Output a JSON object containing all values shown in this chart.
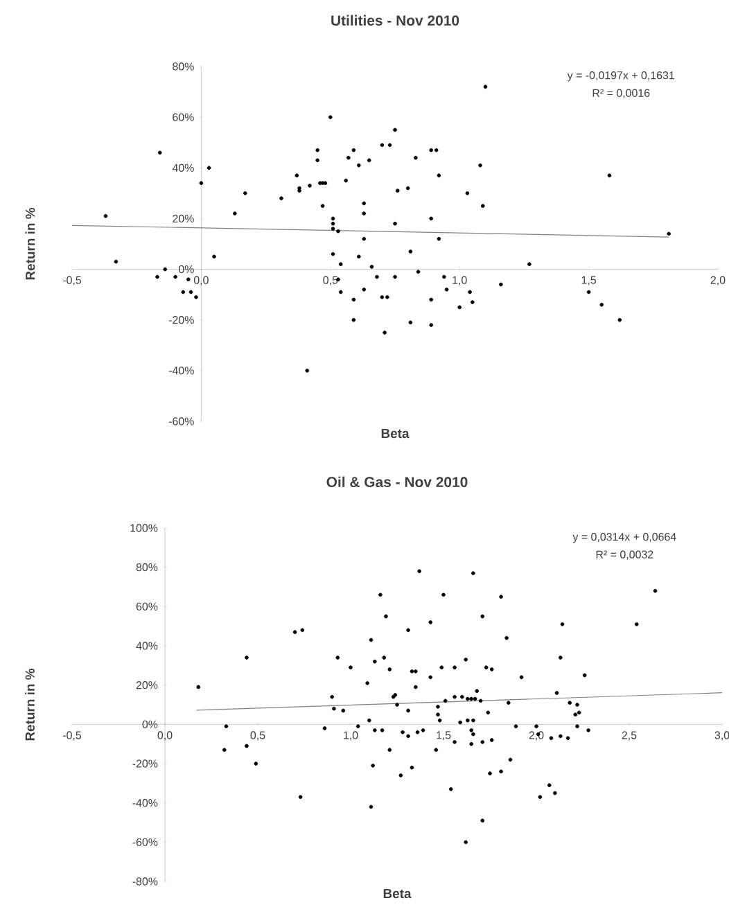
{
  "chart_data": [
    {
      "type": "scatter",
      "title": "Utilities - Nov 2010",
      "xlabel": "Beta",
      "ylabel": "Return in %",
      "xlim": [
        -0.5,
        2.0
      ],
      "ylim": [
        -60,
        80
      ],
      "xticks": [
        {
          "value": -0.5,
          "label": "-0,5"
        },
        {
          "value": 0,
          "label": "0,0"
        },
        {
          "value": 0.5,
          "label": "0,5"
        },
        {
          "value": 1.0,
          "label": "1,0"
        },
        {
          "value": 1.5,
          "label": "1,5"
        },
        {
          "value": 2.0,
          "label": "2,0"
        }
      ],
      "yticks": [
        {
          "value": -60,
          "label": "-60%"
        },
        {
          "value": -40,
          "label": "-40%"
        },
        {
          "value": -20,
          "label": "-20%"
        },
        {
          "value": 0,
          "label": "0%"
        },
        {
          "value": 20,
          "label": "20%"
        },
        {
          "value": 40,
          "label": "40%"
        },
        {
          "value": 60,
          "label": "60%"
        },
        {
          "value": 80,
          "label": "80%"
        }
      ],
      "annotations": [
        "y = -0,0197x + 0,1631",
        "R² = 0,0016"
      ],
      "series": [
        {
          "marker": "circle",
          "color": "#000000",
          "x": [
            -0.37,
            -0.33,
            -0.16,
            -0.17,
            -0.14,
            -0.1,
            -0.05,
            -0.07,
            -0.04,
            -0.02,
            0.0,
            0.03,
            0.05,
            0.13,
            0.17,
            0.31,
            0.37,
            0.38,
            0.38,
            0.42,
            0.41,
            0.45,
            0.45,
            0.46,
            0.47,
            0.48,
            0.47,
            0.5,
            0.51,
            0.51,
            0.51,
            0.53,
            0.53,
            0.54,
            0.54,
            0.51,
            0.56,
            0.57,
            0.59,
            0.59,
            0.59,
            0.61,
            0.61,
            0.63,
            0.63,
            0.63,
            0.63,
            0.65,
            0.66,
            0.68,
            0.7,
            0.73,
            0.75,
            0.75,
            0.75,
            0.76,
            0.8,
            0.7,
            0.72,
            0.71,
            0.81,
            0.83,
            0.81,
            0.84,
            0.89,
            0.89,
            0.91,
            0.92,
            0.92,
            0.89,
            0.89,
            0.94,
            0.95,
            1.0,
            1.03,
            1.04,
            1.05,
            1.08,
            1.09,
            1.1,
            1.16,
            1.27,
            1.5,
            1.55,
            1.58,
            1.62,
            1.81
          ],
          "values": [
            21,
            3,
            46,
            -3,
            0,
            -3,
            -4,
            -9,
            -9,
            -11,
            34,
            40,
            5,
            22,
            30,
            28,
            37,
            32,
            31,
            33,
            -40,
            47,
            43,
            34,
            34,
            34,
            25,
            60,
            20,
            18,
            16,
            15,
            -4,
            -9,
            2,
            6,
            35,
            44,
            47,
            -12,
            -20,
            5,
            41,
            26,
            22,
            12,
            -8,
            43,
            1,
            -3,
            49,
            49,
            55,
            -3,
            18,
            31,
            32,
            -11,
            -11,
            -25,
            7,
            44,
            -21,
            -1,
            20,
            47,
            47,
            37,
            12,
            -12,
            -22,
            -3,
            -8,
            -15,
            30,
            -9,
            -13,
            41,
            25,
            72,
            -6,
            2,
            -9,
            -14,
            37,
            -20,
            14
          ]
        },
        {
          "type": "line",
          "color": "#808080",
          "x": [
            -0.5,
            1.81
          ],
          "values": [
            17.3,
            12.7
          ]
        }
      ]
    },
    {
      "type": "scatter",
      "title": "Oil & Gas - Nov 2010",
      "xlabel": "Beta",
      "ylabel": "Return in %",
      "xlim": [
        -0.5,
        3.0
      ],
      "ylim": [
        -80,
        100
      ],
      "xticks": [
        {
          "value": -0.5,
          "label": "-0,5"
        },
        {
          "value": 0,
          "label": "0,0"
        },
        {
          "value": 0.5,
          "label": "0,5"
        },
        {
          "value": 1.0,
          "label": "1,0"
        },
        {
          "value": 1.5,
          "label": "1,5"
        },
        {
          "value": 2.0,
          "label": "2,0"
        },
        {
          "value": 2.5,
          "label": "2,5"
        },
        {
          "value": 3.0,
          "label": "3,0"
        }
      ],
      "yticks": [
        {
          "value": -80,
          "label": "-80%"
        },
        {
          "value": -60,
          "label": "-60%"
        },
        {
          "value": -40,
          "label": "-40%"
        },
        {
          "value": -20,
          "label": "-20%"
        },
        {
          "value": 0,
          "label": "0%"
        },
        {
          "value": 20,
          "label": "20%"
        },
        {
          "value": 40,
          "label": "40%"
        },
        {
          "value": 60,
          "label": "60%"
        },
        {
          "value": 80,
          "label": "80%"
        },
        {
          "value": 100,
          "label": "100%"
        }
      ],
      "annotations": [
        "y = 0,0314x + 0,0664",
        "R² = 0,0032"
      ],
      "series": [
        {
          "marker": "circle",
          "color": "#000000",
          "x": [
            0.18,
            0.33,
            0.32,
            0.44,
            0.44,
            0.49,
            0.7,
            0.74,
            0.73,
            0.86,
            0.9,
            0.91,
            0.96,
            0.93,
            1.0,
            1.04,
            1.11,
            1.13,
            1.09,
            1.1,
            1.13,
            1.17,
            1.12,
            1.11,
            1.16,
            1.19,
            1.18,
            1.21,
            1.23,
            1.24,
            1.25,
            1.21,
            1.27,
            1.28,
            1.31,
            1.31,
            1.31,
            1.33,
            1.33,
            1.35,
            1.35,
            1.37,
            1.36,
            1.39,
            1.43,
            1.43,
            1.46,
            1.47,
            1.47,
            1.48,
            1.5,
            1.49,
            1.51,
            1.54,
            1.56,
            1.56,
            1.56,
            1.59,
            1.6,
            1.63,
            1.65,
            1.67,
            1.62,
            1.63,
            1.62,
            1.65,
            1.66,
            1.65,
            1.66,
            1.66,
            1.68,
            1.7,
            1.71,
            1.71,
            1.71,
            1.73,
            1.76,
            1.74,
            1.76,
            1.75,
            1.81,
            1.81,
            1.84,
            1.85,
            1.86,
            1.89,
            1.92,
            2.0,
            2.01,
            2.02,
            2.07,
            2.08,
            2.1,
            2.11,
            2.13,
            2.13,
            2.14,
            2.17,
            2.18,
            2.22,
            2.21,
            2.23,
            2.22,
            2.26,
            2.28,
            2.54,
            2.64
          ],
          "values": [
            19,
            -1,
            -13,
            34,
            -11,
            -20,
            47,
            48,
            -37,
            -2,
            14,
            8,
            7,
            34,
            29,
            -1,
            43,
            32,
            21,
            2,
            -3,
            -3,
            -21,
            -42,
            66,
            55,
            34,
            28,
            14,
            15,
            10,
            -13,
            -26,
            -4,
            -6,
            7,
            48,
            -22,
            27,
            27,
            19,
            78,
            -4,
            -3,
            24,
            52,
            -13,
            5,
            9,
            2,
            66,
            29,
            12,
            -33,
            -9,
            29,
            14,
            1,
            14,
            13,
            13,
            13,
            33,
            2,
            -60,
            -3,
            -5,
            -10,
            77,
            2,
            17,
            12,
            55,
            -9,
            -49,
            29,
            28,
            6,
            -8,
            -25,
            65,
            -24,
            44,
            11,
            -18,
            -1,
            24,
            -1,
            -5,
            -37,
            -31,
            -7,
            -35,
            16,
            -6,
            34,
            51,
            -7,
            11,
            10,
            5,
            6,
            -1,
            25,
            -3,
            51,
            68
          ]
        },
        {
          "type": "line",
          "color": "#808080",
          "x": [
            0.17,
            3.0
          ],
          "values": [
            7.2,
            16.1
          ]
        }
      ]
    }
  ]
}
